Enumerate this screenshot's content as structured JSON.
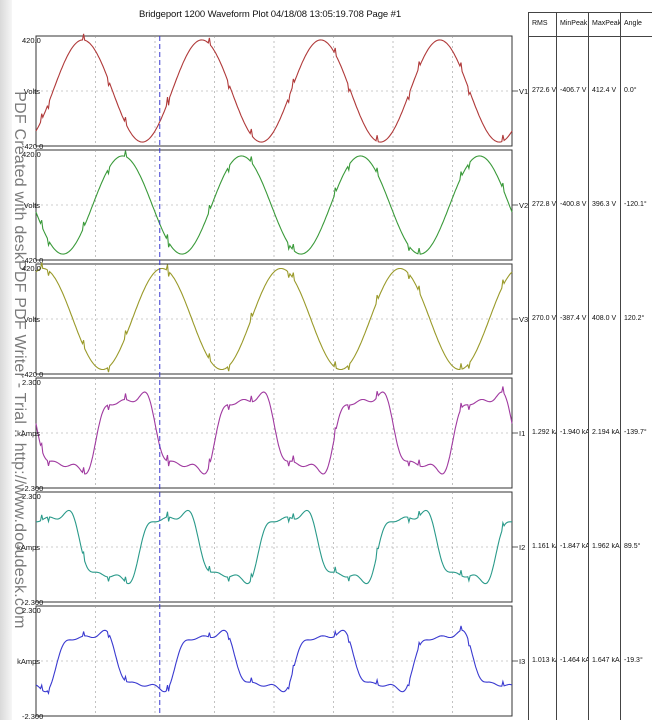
{
  "title": "Bridgeport 1200  Waveform Plot  04/18/08  13:05:19.708   Page #1",
  "watermark": "PDF Created with deskPDF PDF Writer - Trial :: http://www.docudesk.com",
  "table": {
    "headers": [
      "RMS",
      "MinPeak",
      "MaxPeak",
      "Angle"
    ]
  },
  "colors": {
    "V1": "#b03a3a",
    "V2": "#3a9a3a",
    "V3": "#9a9a2a",
    "I1": "#a03aa0",
    "I2": "#2a9a8a",
    "I3": "#3a3ad0",
    "cursor": "#3a3ad0",
    "grid": "#9a9a9a"
  },
  "chart_data": [
    {
      "type": "line",
      "series": [
        {
          "name": "V1",
          "waveform": "sine"
        }
      ],
      "ylabel": "Volts",
      "ylim": [
        -420.0,
        420.0
      ],
      "ytick_labels": [
        "420.0",
        "-420.0"
      ],
      "measurements": {
        "rms": "272.6 V",
        "min_peak": "-406.7 V",
        "max_peak": "412.4 V",
        "angle": "0.0°"
      },
      "angle_deg": 0.0,
      "peak": 412.4,
      "min": -406.7
    },
    {
      "type": "line",
      "series": [
        {
          "name": "V2",
          "waveform": "sine"
        }
      ],
      "ylabel": "Volts",
      "ylim": [
        -420.0,
        420.0
      ],
      "ytick_labels": [
        "420.0",
        "-420.0"
      ],
      "measurements": {
        "rms": "272.8 V",
        "min_peak": "-400.8 V",
        "max_peak": "396.3 V",
        "angle": "-120.1°"
      },
      "angle_deg": -120.1,
      "peak": 396.3,
      "min": -400.8
    },
    {
      "type": "line",
      "series": [
        {
          "name": "V3",
          "waveform": "sine"
        }
      ],
      "ylabel": "Volts",
      "ylim": [
        -420.0,
        420.0
      ],
      "ytick_labels": [
        "420.0",
        "-420.0"
      ],
      "measurements": {
        "rms": "270.0 V",
        "min_peak": "-387.4 V",
        "max_peak": "408.0 V",
        "angle": "120.2°"
      },
      "angle_deg": 120.2,
      "peak": 408.0,
      "min": -387.4
    },
    {
      "type": "line",
      "series": [
        {
          "name": "I1",
          "waveform": "distorted"
        }
      ],
      "ylabel": "kAmps",
      "ylim": [
        -2.3,
        2.3
      ],
      "ytick_labels": [
        "2.300",
        "-2.300"
      ],
      "measurements": {
        "rms": "1.292 kA",
        "min_peak": "-1.940 kA",
        "max_peak": "2.194 kA",
        "angle": "-139.7°"
      },
      "angle_deg": -139.7,
      "peak": 2.194,
      "min": -1.94
    },
    {
      "type": "line",
      "series": [
        {
          "name": "I2",
          "waveform": "distorted"
        }
      ],
      "ylabel": "kAmps",
      "ylim": [
        -2.3,
        2.3
      ],
      "ytick_labels": [
        "2.300",
        "-2.300"
      ],
      "measurements": {
        "rms": "1.161 kA",
        "min_peak": "-1.847 kA",
        "max_peak": "1.962 kA",
        "angle": "89.5°"
      },
      "angle_deg": 89.5,
      "peak": 1.962,
      "min": -1.847
    },
    {
      "type": "line",
      "series": [
        {
          "name": "I3",
          "waveform": "distorted"
        }
      ],
      "ylabel": "kAmps",
      "ylim": [
        -2.3,
        2.3
      ],
      "ytick_labels": [
        "2.300",
        "-2.300"
      ],
      "measurements": {
        "rms": "1.013 kA",
        "min_peak": "-1.464 kA",
        "max_peak": "1.647 kA",
        "angle": "-19.3°"
      },
      "angle_deg": -19.3,
      "peak": 1.647,
      "min": -1.464
    }
  ],
  "cycles_shown": 4,
  "grid": true
}
